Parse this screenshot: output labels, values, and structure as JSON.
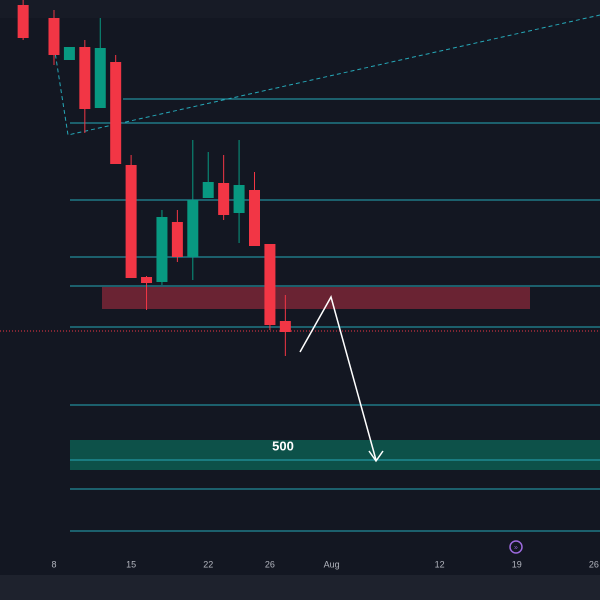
{
  "chart_data": {
    "type": "candlestick",
    "x": [
      0,
      2,
      3,
      4,
      5,
      6,
      7,
      8,
      9,
      10,
      11,
      12,
      13,
      14,
      15,
      16,
      17
    ],
    "open": [
      942,
      929,
      887,
      900,
      839,
      885,
      782,
      670,
      665,
      725,
      690,
      749,
      764,
      734,
      757,
      703,
      626
    ],
    "high": [
      947,
      937,
      900,
      907,
      929,
      892,
      792,
      671,
      737,
      737,
      807,
      795,
      792,
      807,
      775,
      703,
      652
    ],
    "low": [
      907,
      882,
      887,
      814,
      839,
      783,
      669,
      637,
      662,
      685,
      667,
      749,
      727,
      704,
      701,
      617,
      591
    ],
    "close": [
      909,
      892,
      900,
      838,
      899,
      783,
      669,
      664,
      730,
      690,
      747,
      765,
      732,
      762,
      701,
      622,
      615
    ],
    "up_color": "#089981",
    "down_color": "#f23645",
    "xlim": [
      -1.5,
      37.4
    ],
    "ylim": [
      382,
      947
    ],
    "xticks": [
      {
        "value": 2,
        "label": "8"
      },
      {
        "value": 7,
        "label": "15"
      },
      {
        "value": 12,
        "label": "22"
      },
      {
        "value": 16,
        "label": "26"
      },
      {
        "value": 20,
        "label": "Aug"
      },
      {
        "value": 27,
        "label": "12"
      },
      {
        "value": 32,
        "label": "19"
      },
      {
        "value": 37,
        "label": "26"
      }
    ],
    "levels": [
      848,
      824,
      747,
      690,
      661,
      620,
      542,
      487,
      458,
      416
    ],
    "level_color": "#26a8b8",
    "current_price": 616,
    "zones": [
      {
        "low": 638,
        "high": 660,
        "color": "#7a2636"
      },
      {
        "low": 477,
        "high": 507,
        "color": "#0d5c50",
        "label": "500"
      }
    ]
  }
}
